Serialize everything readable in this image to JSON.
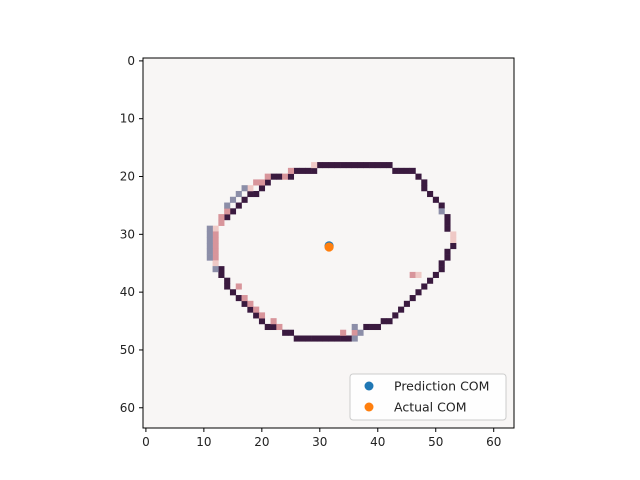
{
  "chart_data": {
    "type": "heatmap",
    "grid_shape": [
      64,
      64
    ],
    "xlim": [
      -0.5,
      63.5
    ],
    "ylim": [
      63.5,
      -0.5
    ],
    "x_ticks": [
      0,
      10,
      20,
      30,
      40,
      50,
      60
    ],
    "y_ticks": [
      0,
      10,
      20,
      30,
      40,
      50,
      60
    ],
    "background_color": "#f8f6f5",
    "contour": {
      "row_spans": [
        [
          18,
          30,
          42
        ],
        [
          19,
          26,
          46
        ],
        [
          20,
          22,
          47
        ],
        [
          21,
          21,
          48
        ],
        [
          22,
          20,
          48
        ],
        [
          23,
          18,
          49
        ],
        [
          24,
          17,
          50
        ],
        [
          25,
          16,
          51
        ],
        [
          26,
          15,
          51
        ],
        [
          27,
          14,
          52
        ],
        [
          28,
          13,
          52
        ],
        [
          29,
          12,
          52
        ],
        [
          30,
          12,
          53
        ],
        [
          31,
          12,
          53
        ],
        [
          32,
          12,
          53
        ],
        [
          33,
          12,
          52
        ],
        [
          34,
          12,
          52
        ],
        [
          35,
          12,
          51
        ],
        [
          36,
          13,
          51
        ],
        [
          37,
          13,
          50
        ],
        [
          38,
          14,
          49
        ],
        [
          39,
          14,
          48
        ],
        [
          40,
          15,
          47
        ],
        [
          41,
          16,
          46
        ],
        [
          42,
          17,
          45
        ],
        [
          43,
          18,
          44
        ],
        [
          44,
          19,
          43
        ],
        [
          45,
          20,
          42
        ],
        [
          46,
          21,
          40
        ],
        [
          47,
          24,
          37
        ],
        [
          48,
          26,
          35
        ]
      ],
      "colors": {
        "dark": "#3a1a3f",
        "pink": "#d8959b",
        "light_pink": "#efc9c6",
        "blue_gray": "#8c8ea8"
      },
      "pink_pixels": [
        [
          19,
          25
        ],
        [
          20,
          21
        ],
        [
          20,
          24
        ],
        [
          21,
          19
        ],
        [
          21,
          20
        ],
        [
          26,
          14
        ],
        [
          27,
          13
        ],
        [
          28,
          13
        ],
        [
          30,
          12
        ],
        [
          31,
          12
        ],
        [
          32,
          12
        ],
        [
          33,
          12
        ],
        [
          34,
          12
        ],
        [
          39,
          16
        ],
        [
          41,
          17
        ],
        [
          42,
          18
        ],
        [
          43,
          19
        ],
        [
          44,
          20
        ],
        [
          45,
          22
        ],
        [
          46,
          23
        ],
        [
          47,
          34
        ],
        [
          47,
          36
        ],
        [
          37,
          46
        ]
      ],
      "light_pink_pixels": [
        [
          18,
          29
        ],
        [
          22,
          18
        ],
        [
          29,
          12
        ],
        [
          35,
          12
        ],
        [
          30,
          53
        ],
        [
          31,
          53
        ],
        [
          37,
          47
        ]
      ],
      "blue_gray_pixels": [
        [
          22,
          17
        ],
        [
          23,
          16
        ],
        [
          24,
          15
        ],
        [
          25,
          14
        ],
        [
          29,
          11
        ],
        [
          30,
          11
        ],
        [
          31,
          11
        ],
        [
          32,
          11
        ],
        [
          33,
          11
        ],
        [
          34,
          11
        ],
        [
          36,
          12
        ],
        [
          26,
          51
        ],
        [
          46,
          36
        ],
        [
          47,
          37
        ],
        [
          48,
          36
        ]
      ]
    },
    "series": [
      {
        "name": "Prediction COM",
        "x": [
          31.6
        ],
        "y": [
          32.0
        ],
        "color": "#1f77b4"
      },
      {
        "name": "Actual COM",
        "x": [
          31.6
        ],
        "y": [
          32.2
        ],
        "color": "#ff7f0e"
      }
    ],
    "legend_placement": "lower-right"
  }
}
